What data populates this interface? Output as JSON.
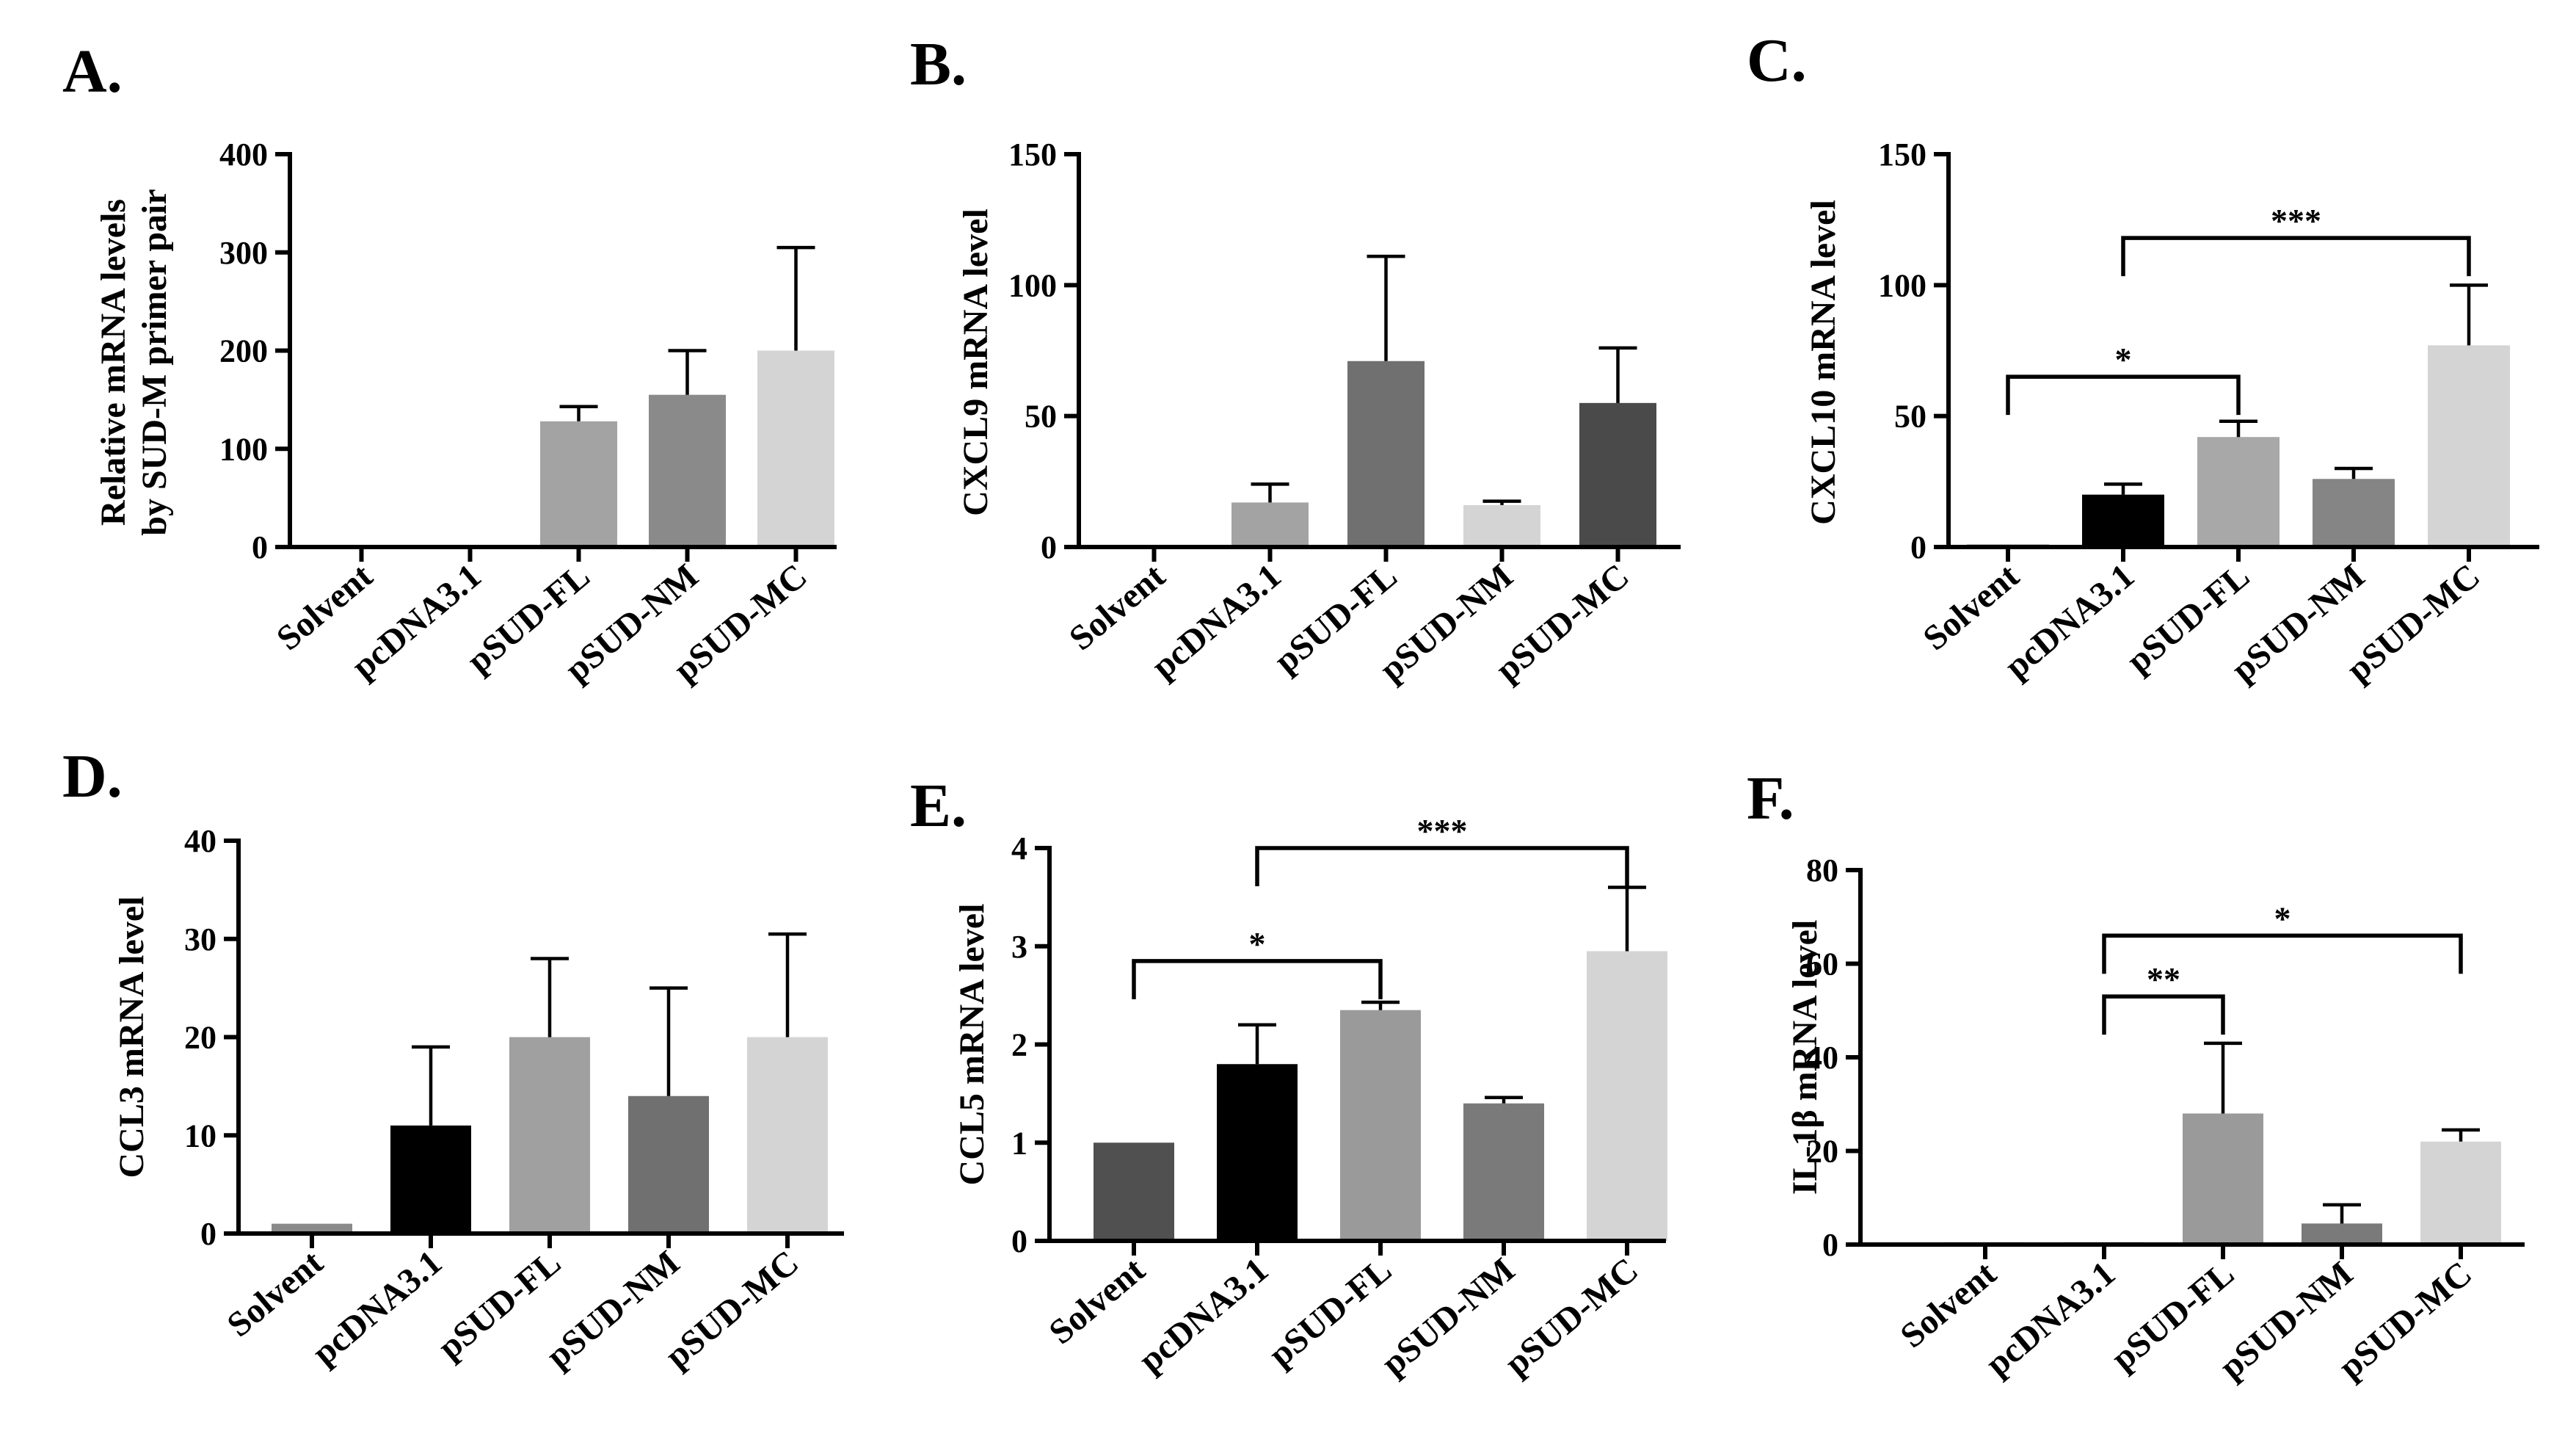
{
  "chart_data": [
    {
      "panel": "A.",
      "type": "bar",
      "categories": [
        "Solvent",
        "pcDNA3.1",
        "pSUD-FL",
        "pSUD-NM",
        "pSUD-MC"
      ],
      "values": [
        1,
        1,
        128,
        155,
        200
      ],
      "errors": [
        0,
        0,
        15,
        45,
        105
      ],
      "colors": [
        "#7d7d7d",
        "#4a4a4a",
        "#a3a3a3",
        "#8a8a8a",
        "#d4d4d4"
      ],
      "ylabel": [
        "Relative mRNA levels",
        "by SUD-M primer pair"
      ],
      "ylim": [
        0,
        400
      ],
      "yticks": [
        0,
        100,
        200,
        300,
        400
      ],
      "significance": []
    },
    {
      "panel": "B.",
      "type": "bar",
      "categories": [
        "Solvent",
        "pcDNA3.1",
        "pSUD-FL",
        "pSUD-NM",
        "pSUD-MC"
      ],
      "values": [
        0,
        17,
        71,
        16,
        55
      ],
      "errors": [
        0,
        7,
        40,
        1.5,
        21
      ],
      "colors": [
        "#5a5a5a",
        "#a3a3a3",
        "#707070",
        "#d4d4d4",
        "#4a4a4a"
      ],
      "ylabel": [
        "CXCL9 mRNA level"
      ],
      "ylim": [
        0,
        150
      ],
      "yticks": [
        0,
        50,
        100,
        150
      ],
      "significance": []
    },
    {
      "panel": "C.",
      "type": "bar",
      "categories": [
        "Solvent",
        "pcDNA3.1",
        "pSUD-FL",
        "pSUD-NM",
        "pSUD-MC"
      ],
      "values": [
        1,
        20,
        42,
        26,
        77
      ],
      "errors": [
        0,
        4,
        6,
        4,
        23
      ],
      "colors": [
        "#9a9a9a",
        "#000000",
        "#a8a8a8",
        "#858585",
        "#d4d4d4"
      ],
      "ylabel": [
        "CXCL10 mRNA level"
      ],
      "ylim": [
        0,
        150
      ],
      "yticks": [
        0,
        50,
        100,
        150
      ],
      "significance": [
        {
          "from": 0,
          "to": 2,
          "level": 65,
          "label": "*"
        },
        {
          "from": 1,
          "to": 4,
          "level": 118,
          "label": "***"
        }
      ]
    },
    {
      "panel": "D.",
      "type": "bar",
      "categories": [
        "Solvent",
        "pcDNA3.1",
        "pSUD-FL",
        "pSUD-NM",
        "pSUD-MC"
      ],
      "values": [
        1,
        11,
        20,
        14,
        20
      ],
      "errors": [
        0,
        8,
        8,
        11,
        10.5
      ],
      "colors": [
        "#8a8a8a",
        "#000000",
        "#a0a0a0",
        "#707070",
        "#d4d4d4"
      ],
      "ylabel": [
        "CCL3 mRNA level"
      ],
      "ylim": [
        0,
        40
      ],
      "yticks": [
        0,
        10,
        20,
        30,
        40
      ],
      "significance": []
    },
    {
      "panel": "E.",
      "type": "bar",
      "categories": [
        "Solvent",
        "pcDNA3.1",
        "pSUD-FL",
        "pSUD-NM",
        "pSUD-MC"
      ],
      "values": [
        1,
        1.8,
        2.35,
        1.4,
        2.95
      ],
      "errors": [
        0,
        0.4,
        0.08,
        0.06,
        0.65
      ],
      "colors": [
        "#505050",
        "#000000",
        "#9a9a9a",
        "#7a7a7a",
        "#d4d4d4"
      ],
      "ylabel": [
        "CCL5 mRNA level"
      ],
      "ylim": [
        0,
        4
      ],
      "yticks": [
        0,
        1,
        2,
        3,
        4
      ],
      "significance": [
        {
          "from": 0,
          "to": 2,
          "level": 2.85,
          "label": "*"
        },
        {
          "from": 1,
          "to": 4,
          "level": 4.0,
          "label": "***"
        }
      ]
    },
    {
      "panel": "F.",
      "type": "bar",
      "categories": [
        "Solvent",
        "pcDNA3.1",
        "pSUD-FL",
        "pSUD-NM",
        "pSUD-MC"
      ],
      "values": [
        0.5,
        0.5,
        28,
        4.5,
        22
      ],
      "errors": [
        0,
        0,
        15,
        4,
        2.5
      ],
      "colors": [
        "#9a9a9a",
        "#7a7a7a",
        "#9a9a9a",
        "#7a7a7a",
        "#d4d4d4"
      ],
      "ylabel": [
        "IL-1β mRNA level"
      ],
      "ylim": [
        0,
        80
      ],
      "yticks": [
        0,
        20,
        40,
        60,
        80
      ],
      "significance": [
        {
          "from": 1,
          "to": 2,
          "level": 53,
          "label": "**"
        },
        {
          "from": 1,
          "to": 4,
          "level": 66,
          "label": "*"
        }
      ]
    }
  ]
}
